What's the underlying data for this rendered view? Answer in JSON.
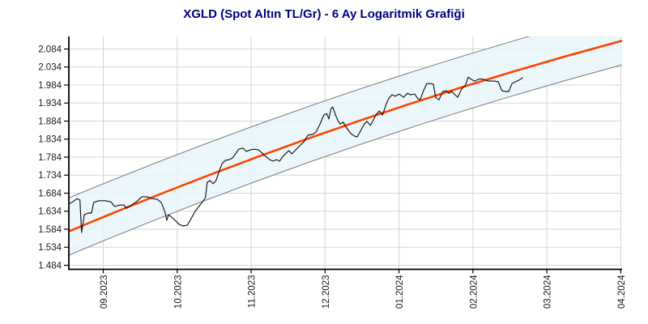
{
  "title": "XGLD (Spot Altın TL/Gr) - 6 Ay Logaritmik Grafiği",
  "title_color": "#000080",
  "chart_data": {
    "type": "line",
    "title": "XGLD (Spot Altın TL/Gr) - 6 Ay Logaritmik Grafiği",
    "scale": "logarithmic",
    "grid": true,
    "colors": {
      "price_line": "#151515",
      "trend_line": "#ff4400",
      "channel_border": "#7d7d7d",
      "channel_fill": "#e7f6fa",
      "grid_line": "#d6d6d6",
      "axis_line": "#000000",
      "tick_text": "#1a1a1a"
    },
    "y_axis": {
      "tick_labels": [
        "2.084",
        "2.034",
        "1.984",
        "1.934",
        "1.884",
        "1.834",
        "1.784",
        "1.734",
        "1.684",
        "1.634",
        "1.584",
        "1.534",
        "1.484"
      ],
      "tick_values": [
        2084,
        2034,
        1984,
        1934,
        1884,
        1834,
        1784,
        1734,
        1684,
        1634,
        1584,
        1534,
        1484
      ],
      "min": 1484,
      "max": 2084
    },
    "x_axis": {
      "tick_labels": [
        "09.2023",
        "10.2023",
        "11.2023",
        "12.2023",
        "01.2024",
        "02.2024",
        "03.2024",
        "04.2024"
      ]
    },
    "regression_channel": {
      "upper": {
        "start_value": 1671,
        "end_value": 2190
      },
      "trend": {
        "start_value": 1578,
        "end_value": 2107
      },
      "lower": {
        "start_value": 1512,
        "end_value": 2040
      }
    },
    "series": [
      {
        "name": "XGLD",
        "type": "line",
        "points": [
          [
            0.0,
            1654
          ],
          [
            0.007,
            1660
          ],
          [
            0.015,
            1669
          ],
          [
            0.02,
            1665
          ],
          [
            0.023,
            1575
          ],
          [
            0.028,
            1624
          ],
          [
            0.035,
            1629
          ],
          [
            0.041,
            1629
          ],
          [
            0.045,
            1658
          ],
          [
            0.054,
            1663
          ],
          [
            0.066,
            1663
          ],
          [
            0.076,
            1660
          ],
          [
            0.083,
            1647
          ],
          [
            0.092,
            1651
          ],
          [
            0.1,
            1651
          ],
          [
            0.104,
            1642
          ],
          [
            0.111,
            1649
          ],
          [
            0.122,
            1660
          ],
          [
            0.132,
            1674
          ],
          [
            0.141,
            1674
          ],
          [
            0.151,
            1669
          ],
          [
            0.16,
            1667
          ],
          [
            0.167,
            1658
          ],
          [
            0.174,
            1631
          ],
          [
            0.177,
            1609
          ],
          [
            0.18,
            1624
          ],
          [
            0.184,
            1620
          ],
          [
            0.192,
            1609
          ],
          [
            0.199,
            1598
          ],
          [
            0.206,
            1593
          ],
          [
            0.214,
            1595
          ],
          [
            0.221,
            1613
          ],
          [
            0.228,
            1633
          ],
          [
            0.236,
            1649
          ],
          [
            0.243,
            1663
          ],
          [
            0.247,
            1672
          ],
          [
            0.25,
            1714
          ],
          [
            0.255,
            1719
          ],
          [
            0.261,
            1710
          ],
          [
            0.266,
            1719
          ],
          [
            0.272,
            1746
          ],
          [
            0.277,
            1766
          ],
          [
            0.283,
            1775
          ],
          [
            0.29,
            1777
          ],
          [
            0.296,
            1782
          ],
          [
            0.302,
            1795
          ],
          [
            0.307,
            1806
          ],
          [
            0.315,
            1809
          ],
          [
            0.321,
            1800
          ],
          [
            0.328,
            1804
          ],
          [
            0.335,
            1806
          ],
          [
            0.343,
            1804
          ],
          [
            0.348,
            1797
          ],
          [
            0.356,
            1786
          ],
          [
            0.363,
            1777
          ],
          [
            0.369,
            1773
          ],
          [
            0.375,
            1777
          ],
          [
            0.381,
            1773
          ],
          [
            0.387,
            1786
          ],
          [
            0.394,
            1797
          ],
          [
            0.398,
            1802
          ],
          [
            0.403,
            1793
          ],
          [
            0.41,
            1804
          ],
          [
            0.417,
            1815
          ],
          [
            0.425,
            1827
          ],
          [
            0.432,
            1845
          ],
          [
            0.441,
            1847
          ],
          [
            0.447,
            1854
          ],
          [
            0.454,
            1876
          ],
          [
            0.461,
            1901
          ],
          [
            0.466,
            1905
          ],
          [
            0.47,
            1890
          ],
          [
            0.474,
            1919
          ],
          [
            0.477,
            1923
          ],
          [
            0.482,
            1901
          ],
          [
            0.486,
            1887
          ],
          [
            0.49,
            1876
          ],
          [
            0.496,
            1881
          ],
          [
            0.502,
            1865
          ],
          [
            0.51,
            1849
          ],
          [
            0.517,
            1842
          ],
          [
            0.521,
            1840
          ],
          [
            0.527,
            1856
          ],
          [
            0.534,
            1876
          ],
          [
            0.539,
            1883
          ],
          [
            0.545,
            1872
          ],
          [
            0.549,
            1883
          ],
          [
            0.555,
            1901
          ],
          [
            0.561,
            1912
          ],
          [
            0.567,
            1901
          ],
          [
            0.574,
            1932
          ],
          [
            0.578,
            1946
          ],
          [
            0.584,
            1957
          ],
          [
            0.59,
            1953
          ],
          [
            0.597,
            1959
          ],
          [
            0.605,
            1950
          ],
          [
            0.612,
            1961
          ],
          [
            0.618,
            1957
          ],
          [
            0.625,
            1959
          ],
          [
            0.631,
            1946
          ],
          [
            0.635,
            1943
          ],
          [
            0.641,
            1968
          ],
          [
            0.647,
            1988
          ],
          [
            0.654,
            1988
          ],
          [
            0.659,
            1986
          ],
          [
            0.663,
            1950
          ],
          [
            0.669,
            1943
          ],
          [
            0.676,
            1966
          ],
          [
            0.682,
            1968
          ],
          [
            0.687,
            1961
          ],
          [
            0.692,
            1966
          ],
          [
            0.698,
            1957
          ],
          [
            0.703,
            1950
          ],
          [
            0.71,
            1973
          ],
          [
            0.717,
            1984
          ],
          [
            0.722,
            2006
          ],
          [
            0.728,
            1999
          ],
          [
            0.734,
            1995
          ],
          [
            0.739,
            1999
          ],
          [
            0.744,
            2001
          ],
          [
            0.751,
            1999
          ],
          [
            0.758,
            1995
          ],
          [
            0.769,
            1995
          ],
          [
            0.776,
            1993
          ],
          [
            0.783,
            1968
          ],
          [
            0.789,
            1966
          ],
          [
            0.795,
            1966
          ],
          [
            0.801,
            1988
          ],
          [
            0.807,
            1993
          ],
          [
            0.813,
            1997
          ],
          [
            0.82,
            2004
          ]
        ]
      }
    ]
  }
}
